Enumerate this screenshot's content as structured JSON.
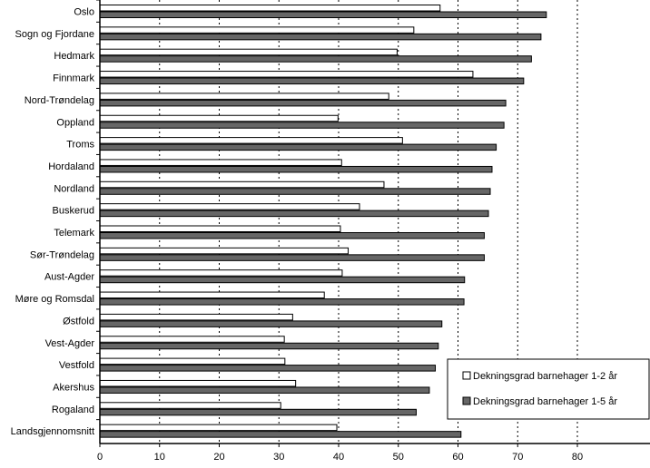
{
  "chart_data": {
    "type": "bar",
    "orientation": "horizontal",
    "title": "",
    "xlabel": "",
    "ylabel": "",
    "xlim": [
      0,
      80
    ],
    "xticks": [
      0,
      10,
      20,
      30,
      40,
      50,
      60,
      70,
      80
    ],
    "grid": "vertical dotted",
    "legend_position": "bottom-right",
    "categories": [
      "Oslo",
      "Sogn og Fjordane",
      "Hedmark",
      "Finnmark",
      "Nord-Trøndelag",
      "Oppland",
      "Troms",
      "Hordaland",
      "Nordland",
      "Buskerud",
      "Telemark",
      "Sør-Trøndelag",
      "Aust-Agder",
      "Møre og Romsdal",
      "Østfold",
      "Vest-Agder",
      "Vestfold",
      "Akershus",
      "Rogaland",
      "Landsgjennomsnitt"
    ],
    "series": [
      {
        "name": "Dekningsgrad barnehager 1-2 år",
        "color": "#ffffff",
        "values": [
          57.0,
          52.6,
          49.8,
          62.5,
          48.4,
          39.9,
          50.7,
          40.5,
          47.6,
          43.5,
          40.3,
          41.6,
          40.6,
          37.6,
          32.3,
          30.9,
          31.0,
          32.8,
          30.3,
          39.7
        ]
      },
      {
        "name": "Dekningsgrad barnehager 1-5 år",
        "color": "#666666",
        "values": [
          74.8,
          73.9,
          72.3,
          71.0,
          68.0,
          67.7,
          66.4,
          65.7,
          65.4,
          65.1,
          64.4,
          64.4,
          61.1,
          61.0,
          57.3,
          56.7,
          56.2,
          55.2,
          53.0,
          60.5
        ]
      }
    ]
  }
}
